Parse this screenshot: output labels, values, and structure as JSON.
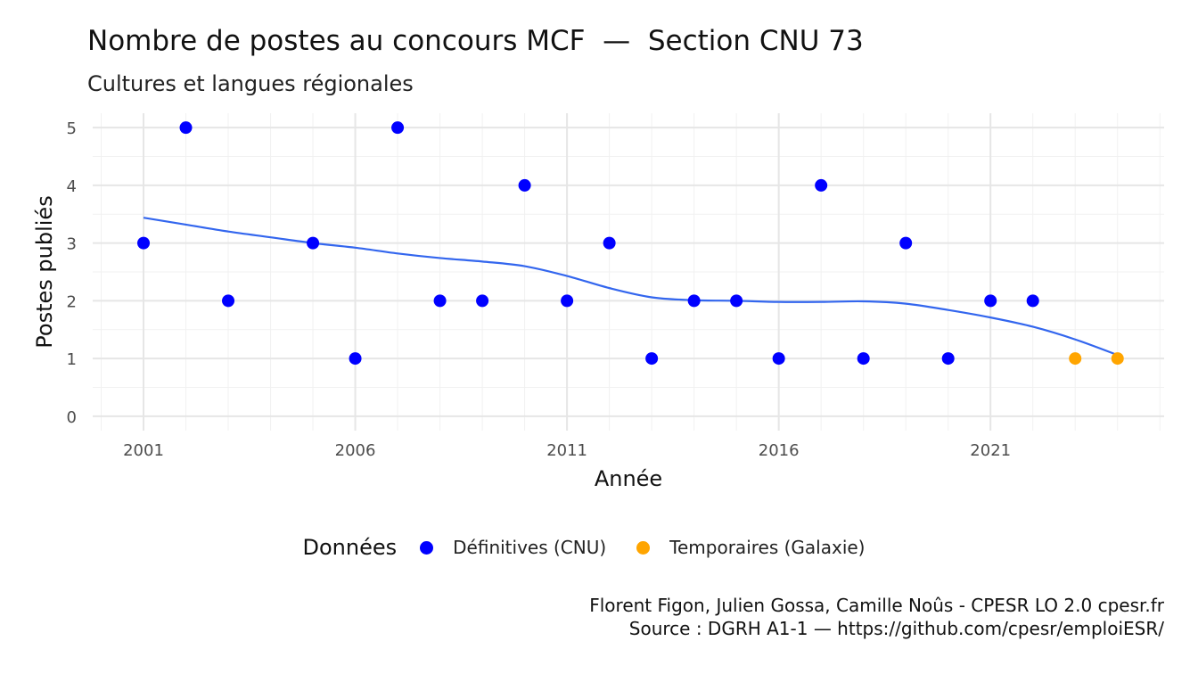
{
  "chart_data": {
    "type": "scatter",
    "title": "Nombre de postes au concours MCF  —  Section CNU 73",
    "subtitle": "Cultures et langues régionales",
    "xlabel": "Année",
    "ylabel": "Postes publiés",
    "xlim": [
      1999.8,
      2025.1
    ],
    "ylim": [
      -0.25,
      5.25
    ],
    "x_ticks": [
      2001,
      2006,
      2011,
      2016,
      2021
    ],
    "y_ticks": [
      0,
      1,
      2,
      3,
      4,
      5
    ],
    "grid": true,
    "legend": {
      "title": "Données",
      "position": "bottom",
      "entries": [
        {
          "label": "Définitives (CNU)",
          "color": "#0000ff"
        },
        {
          "label": "Temporaires (Galaxie)",
          "color": "#ffa500"
        }
      ]
    },
    "series": [
      {
        "name": "Définitives (CNU)",
        "color": "#0000ff",
        "points": [
          {
            "x": 2001,
            "y": 3
          },
          {
            "x": 2002,
            "y": 5
          },
          {
            "x": 2003,
            "y": 2
          },
          {
            "x": 2005,
            "y": 3
          },
          {
            "x": 2006,
            "y": 1
          },
          {
            "x": 2007,
            "y": 5
          },
          {
            "x": 2008,
            "y": 2
          },
          {
            "x": 2009,
            "y": 2
          },
          {
            "x": 2010,
            "y": 4
          },
          {
            "x": 2011,
            "y": 2
          },
          {
            "x": 2012,
            "y": 3
          },
          {
            "x": 2013,
            "y": 1
          },
          {
            "x": 2014,
            "y": 2
          },
          {
            "x": 2015,
            "y": 2
          },
          {
            "x": 2016,
            "y": 1
          },
          {
            "x": 2017,
            "y": 4
          },
          {
            "x": 2018,
            "y": 1
          },
          {
            "x": 2019,
            "y": 3
          },
          {
            "x": 2020,
            "y": 1
          },
          {
            "x": 2021,
            "y": 2
          },
          {
            "x": 2022,
            "y": 2
          }
        ]
      },
      {
        "name": "Temporaires (Galaxie)",
        "color": "#ffa500",
        "points": [
          {
            "x": 2023,
            "y": 1
          },
          {
            "x": 2024,
            "y": 1
          }
        ]
      }
    ],
    "trend_line": {
      "color": "#3366ee",
      "points": [
        {
          "x": 2001,
          "y": 3.44
        },
        {
          "x": 2002,
          "y": 3.32
        },
        {
          "x": 2003,
          "y": 3.2
        },
        {
          "x": 2004,
          "y": 3.1
        },
        {
          "x": 2005,
          "y": 3.0
        },
        {
          "x": 2006,
          "y": 2.92
        },
        {
          "x": 2007,
          "y": 2.82
        },
        {
          "x": 2008,
          "y": 2.74
        },
        {
          "x": 2009,
          "y": 2.68
        },
        {
          "x": 2010,
          "y": 2.6
        },
        {
          "x": 2011,
          "y": 2.43
        },
        {
          "x": 2012,
          "y": 2.22
        },
        {
          "x": 2013,
          "y": 2.06
        },
        {
          "x": 2014,
          "y": 2.01
        },
        {
          "x": 2015,
          "y": 2.0
        },
        {
          "x": 2016,
          "y": 1.98
        },
        {
          "x": 2017,
          "y": 1.98
        },
        {
          "x": 2018,
          "y": 1.99
        },
        {
          "x": 2019,
          "y": 1.95
        },
        {
          "x": 2020,
          "y": 1.84
        },
        {
          "x": 2021,
          "y": 1.71
        },
        {
          "x": 2022,
          "y": 1.55
        },
        {
          "x": 2023,
          "y": 1.33
        },
        {
          "x": 2024,
          "y": 1.06
        }
      ]
    }
  },
  "caption": {
    "line1": "Florent Figon, Julien Gossa, Camille Noûs - CPESR LO 2.0 cpesr.fr",
    "line2": "Source : DGRH A1-1 — https://github.com/cpesr/emploiESR/"
  }
}
